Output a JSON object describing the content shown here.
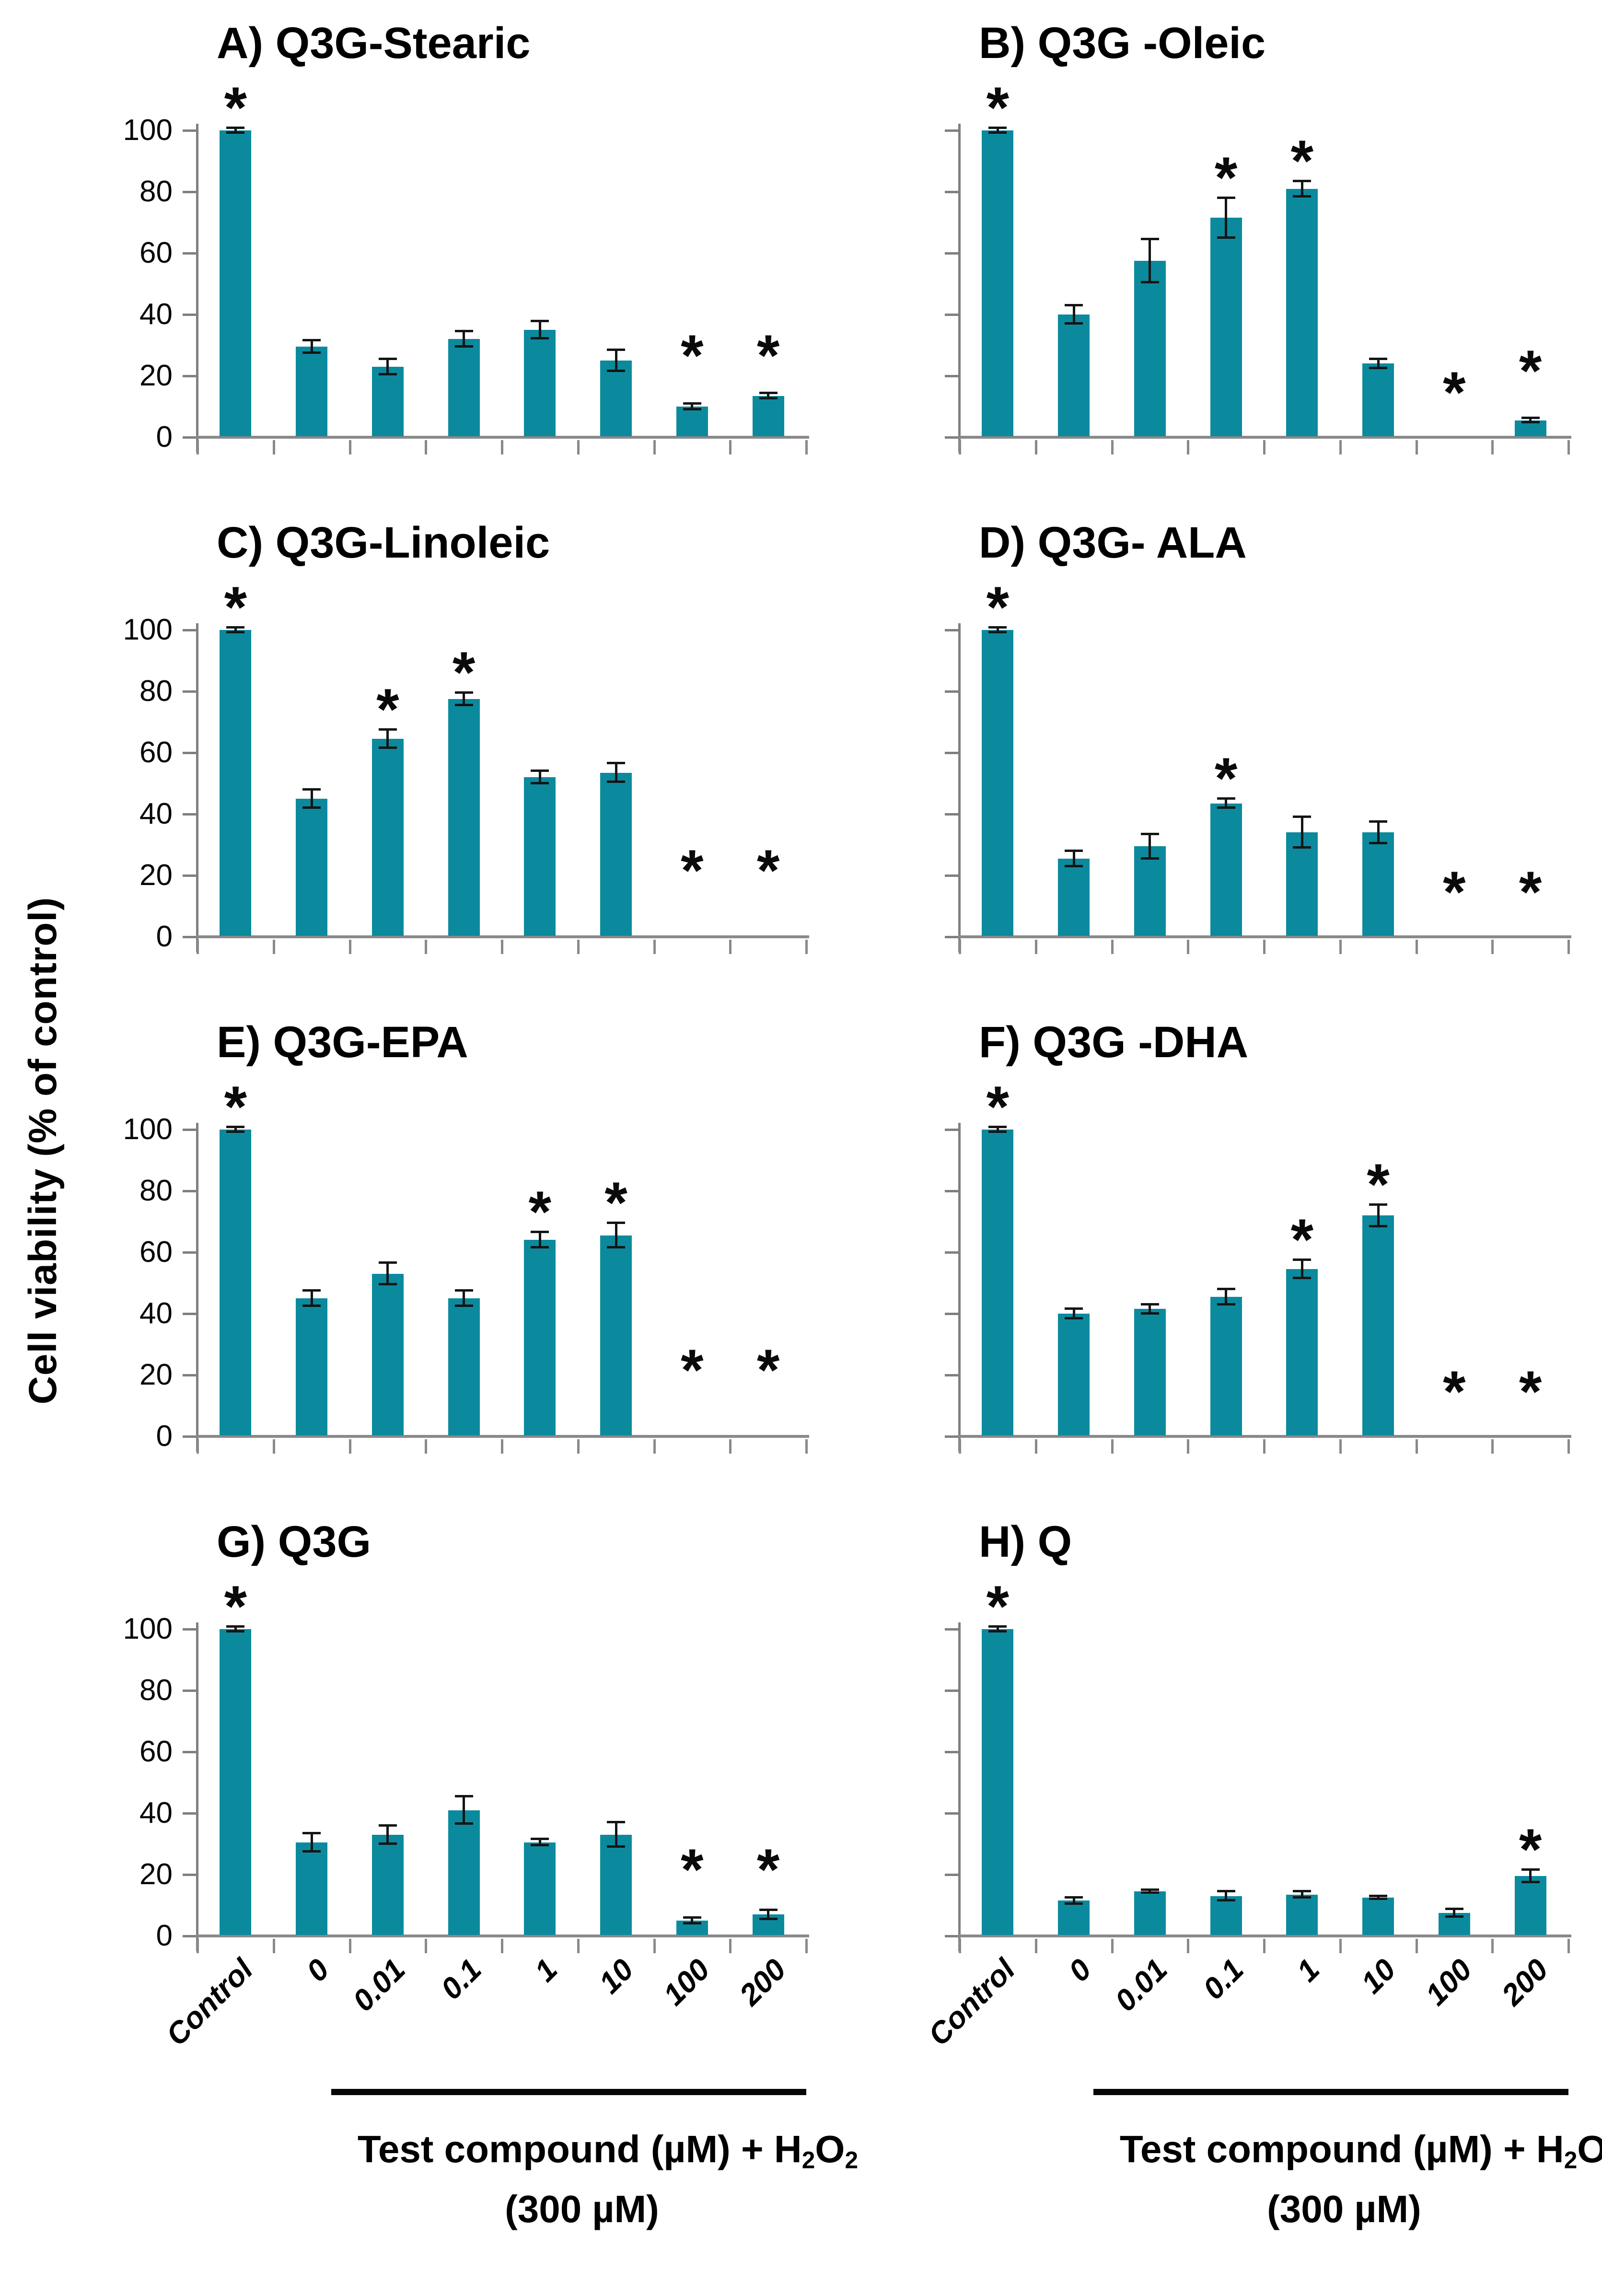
{
  "figure": {
    "ylabel": "Cell viability (% of control)",
    "significance_symbol": "*",
    "colors": {
      "bar": "#0b8a9e",
      "y_axis": "#7f7f7f",
      "x_axis": "#898989",
      "error_bar": "#141414",
      "text": "#000000"
    },
    "categories": [
      "Control",
      "0",
      "0.01",
      "0.1",
      "1",
      "10",
      "100",
      "200"
    ],
    "y_ticks": [
      "0",
      "20",
      "40",
      "60",
      "80",
      "100"
    ],
    "x_axis_label": {
      "line1_tokens": [
        {
          "t": "Test compound (µM) + H"
        },
        {
          "t": "2",
          "sub": true
        },
        {
          "t": "O"
        },
        {
          "t": "2",
          "sub": true
        }
      ],
      "line2_tokens": [
        {
          "t": "(300 µM)"
        }
      ]
    }
  },
  "chart_data": [
    {
      "type": "bar",
      "panel": "A",
      "title": "A) Q3G-Stearic",
      "categories": [
        "Control",
        "0",
        "0.01",
        "0.1",
        "1",
        "10",
        "100",
        "200"
      ],
      "values": [
        100,
        29.5,
        23,
        32,
        35,
        25,
        10,
        13.5
      ],
      "errors": [
        0.8,
        2,
        2.5,
        2.5,
        2.8,
        3.5,
        1,
        0.8
      ],
      "significant": [
        true,
        false,
        false,
        false,
        false,
        false,
        true,
        true
      ],
      "asterisk_y": [
        null,
        null,
        null,
        null,
        null,
        null,
        25,
        25
      ],
      "ylim": [
        0,
        100
      ],
      "y_axis_numbers": true,
      "show_category_labels": false
    },
    {
      "type": "bar",
      "panel": "B",
      "title": "B) Q3G -Oleic",
      "categories": [
        "Control",
        "0",
        "0.01",
        "0.1",
        "1",
        "10",
        "100",
        "200"
      ],
      "values": [
        100,
        40,
        57.5,
        71.5,
        81,
        24,
        0,
        5.5
      ],
      "errors": [
        0.8,
        3,
        7,
        6.5,
        2.5,
        1.5,
        0,
        0.7
      ],
      "significant": [
        true,
        false,
        false,
        true,
        true,
        false,
        true,
        true
      ],
      "asterisk_y": [
        null,
        null,
        null,
        null,
        null,
        null,
        13,
        20
      ],
      "ylim": [
        0,
        100
      ],
      "y_axis_numbers": false,
      "show_category_labels": false
    },
    {
      "type": "bar",
      "panel": "C",
      "title": "C) Q3G-Linoleic",
      "categories": [
        "Control",
        "0",
        "0.01",
        "0.1",
        "1",
        "10",
        "100",
        "200"
      ],
      "values": [
        100,
        45,
        64.5,
        77.5,
        52,
        53.5,
        0,
        0
      ],
      "errors": [
        0.8,
        3,
        3,
        2,
        2,
        3,
        0,
        0
      ],
      "significant": [
        true,
        false,
        true,
        true,
        false,
        false,
        true,
        true
      ],
      "asterisk_y": [
        null,
        null,
        null,
        null,
        null,
        null,
        20,
        20
      ],
      "ylim": [
        0,
        100
      ],
      "y_axis_numbers": true,
      "show_category_labels": false
    },
    {
      "type": "bar",
      "panel": "D",
      "title": "D) Q3G- ALA",
      "categories": [
        "Control",
        "0",
        "0.01",
        "0.1",
        "1",
        "10",
        "100",
        "200"
      ],
      "values": [
        100,
        25.5,
        29.5,
        43.5,
        34,
        34,
        0,
        0
      ],
      "errors": [
        0.8,
        2.5,
        4,
        1.5,
        5,
        3.5,
        0,
        0
      ],
      "significant": [
        true,
        false,
        false,
        true,
        false,
        false,
        true,
        true
      ],
      "asterisk_y": [
        null,
        null,
        null,
        null,
        null,
        null,
        13,
        13
      ],
      "ylim": [
        0,
        100
      ],
      "y_axis_numbers": false,
      "show_category_labels": false
    },
    {
      "type": "bar",
      "panel": "E",
      "title": "E) Q3G-EPA",
      "categories": [
        "Control",
        "0",
        "0.01",
        "0.1",
        "1",
        "10",
        "100",
        "200"
      ],
      "values": [
        100,
        45,
        53,
        45,
        64,
        65.5,
        0,
        0
      ],
      "errors": [
        0.8,
        2.5,
        3.5,
        2.5,
        2.5,
        4,
        0,
        0
      ],
      "significant": [
        true,
        false,
        false,
        false,
        true,
        true,
        true,
        true
      ],
      "asterisk_y": [
        null,
        null,
        null,
        null,
        null,
        null,
        20,
        20
      ],
      "ylim": [
        0,
        100
      ],
      "y_axis_numbers": true,
      "show_category_labels": false
    },
    {
      "type": "bar",
      "panel": "F",
      "title": "F) Q3G -DHA",
      "categories": [
        "Control",
        "0",
        "0.01",
        "0.1",
        "1",
        "10",
        "100",
        "200"
      ],
      "values": [
        100,
        40,
        41.5,
        45.5,
        54.5,
        72,
        0,
        0
      ],
      "errors": [
        0.8,
        1.5,
        1.5,
        2.5,
        3,
        3.5,
        0,
        0
      ],
      "significant": [
        true,
        false,
        false,
        false,
        true,
        true,
        true,
        true
      ],
      "asterisk_y": [
        null,
        null,
        null,
        null,
        null,
        null,
        13,
        13
      ],
      "ylim": [
        0,
        100
      ],
      "y_axis_numbers": false,
      "show_category_labels": false
    },
    {
      "type": "bar",
      "panel": "G",
      "title": "G) Q3G",
      "categories": [
        "Control",
        "0",
        "0.01",
        "0.1",
        "1",
        "10",
        "100",
        "200"
      ],
      "values": [
        100,
        30.5,
        33,
        41,
        30.5,
        33,
        5,
        7
      ],
      "errors": [
        0.8,
        3,
        3,
        4.5,
        1,
        4,
        1,
        1.5
      ],
      "significant": [
        true,
        false,
        false,
        false,
        false,
        false,
        true,
        true
      ],
      "asterisk_y": [
        null,
        null,
        null,
        null,
        null,
        null,
        20,
        20
      ],
      "ylim": [
        0,
        100
      ],
      "y_axis_numbers": true,
      "show_category_labels": true
    },
    {
      "type": "bar",
      "panel": "H",
      "title": "H) Q",
      "categories": [
        "Control",
        "0",
        "0.01",
        "0.1",
        "1",
        "10",
        "100",
        "200"
      ],
      "values": [
        100,
        11.5,
        14.5,
        13,
        13.5,
        12.5,
        7.5,
        19.5
      ],
      "errors": [
        0.8,
        1,
        0.5,
        1.5,
        1,
        0.5,
        1.2,
        2
      ],
      "significant": [
        true,
        false,
        false,
        false,
        false,
        false,
        false,
        true
      ],
      "asterisk_y": [
        null,
        null,
        null,
        null,
        null,
        null,
        null,
        null
      ],
      "ylim": [
        0,
        100
      ],
      "y_axis_numbers": false,
      "show_category_labels": true
    }
  ]
}
